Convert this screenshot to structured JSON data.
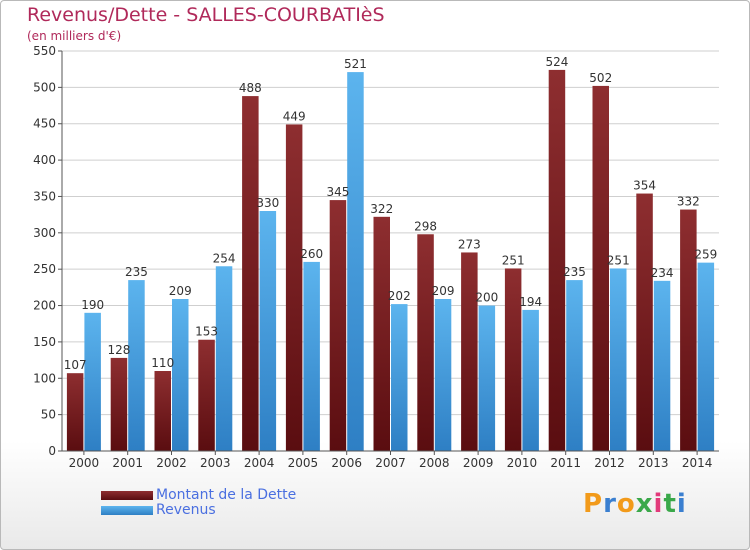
{
  "title": "Revenus/Dette - SALLES-COURBATIèS",
  "subtitle": "(en milliers d'€)",
  "chart_data": {
    "type": "bar",
    "categories": [
      "2000",
      "2001",
      "2002",
      "2003",
      "2004",
      "2005",
      "2006",
      "2007",
      "2008",
      "2009",
      "2010",
      "2011",
      "2012",
      "2013",
      "2014"
    ],
    "series": [
      {
        "name": "Montant de la Dette",
        "color": "#7a1f22",
        "values": [
          107,
          128,
          110,
          153,
          488,
          449,
          345,
          322,
          298,
          273,
          251,
          524,
          502,
          354,
          332
        ]
      },
      {
        "name": "Revenus",
        "color": "#4aa3e3",
        "values": [
          190,
          235,
          209,
          254,
          330,
          260,
          521,
          202,
          209,
          200,
          194,
          235,
          251,
          234,
          259
        ]
      }
    ],
    "ylim": [
      0,
      550
    ],
    "yticks": [
      0,
      50,
      100,
      150,
      200,
      250,
      300,
      350,
      400,
      450,
      500,
      550
    ],
    "grid": true,
    "legend_position": "bottom-left"
  },
  "legend": [
    {
      "label": "Montant de la Dette",
      "color": "#7a1f22"
    },
    {
      "label": "Revenus",
      "color": "#4aa3e3"
    }
  ],
  "logo": {
    "text": "Proxiti",
    "colors": [
      "#f29a1a",
      "#3a7fd0",
      "#f29a1a",
      "#3aa84a",
      "#e23a7a",
      "#3aa84a",
      "#3a7fd0"
    ]
  }
}
